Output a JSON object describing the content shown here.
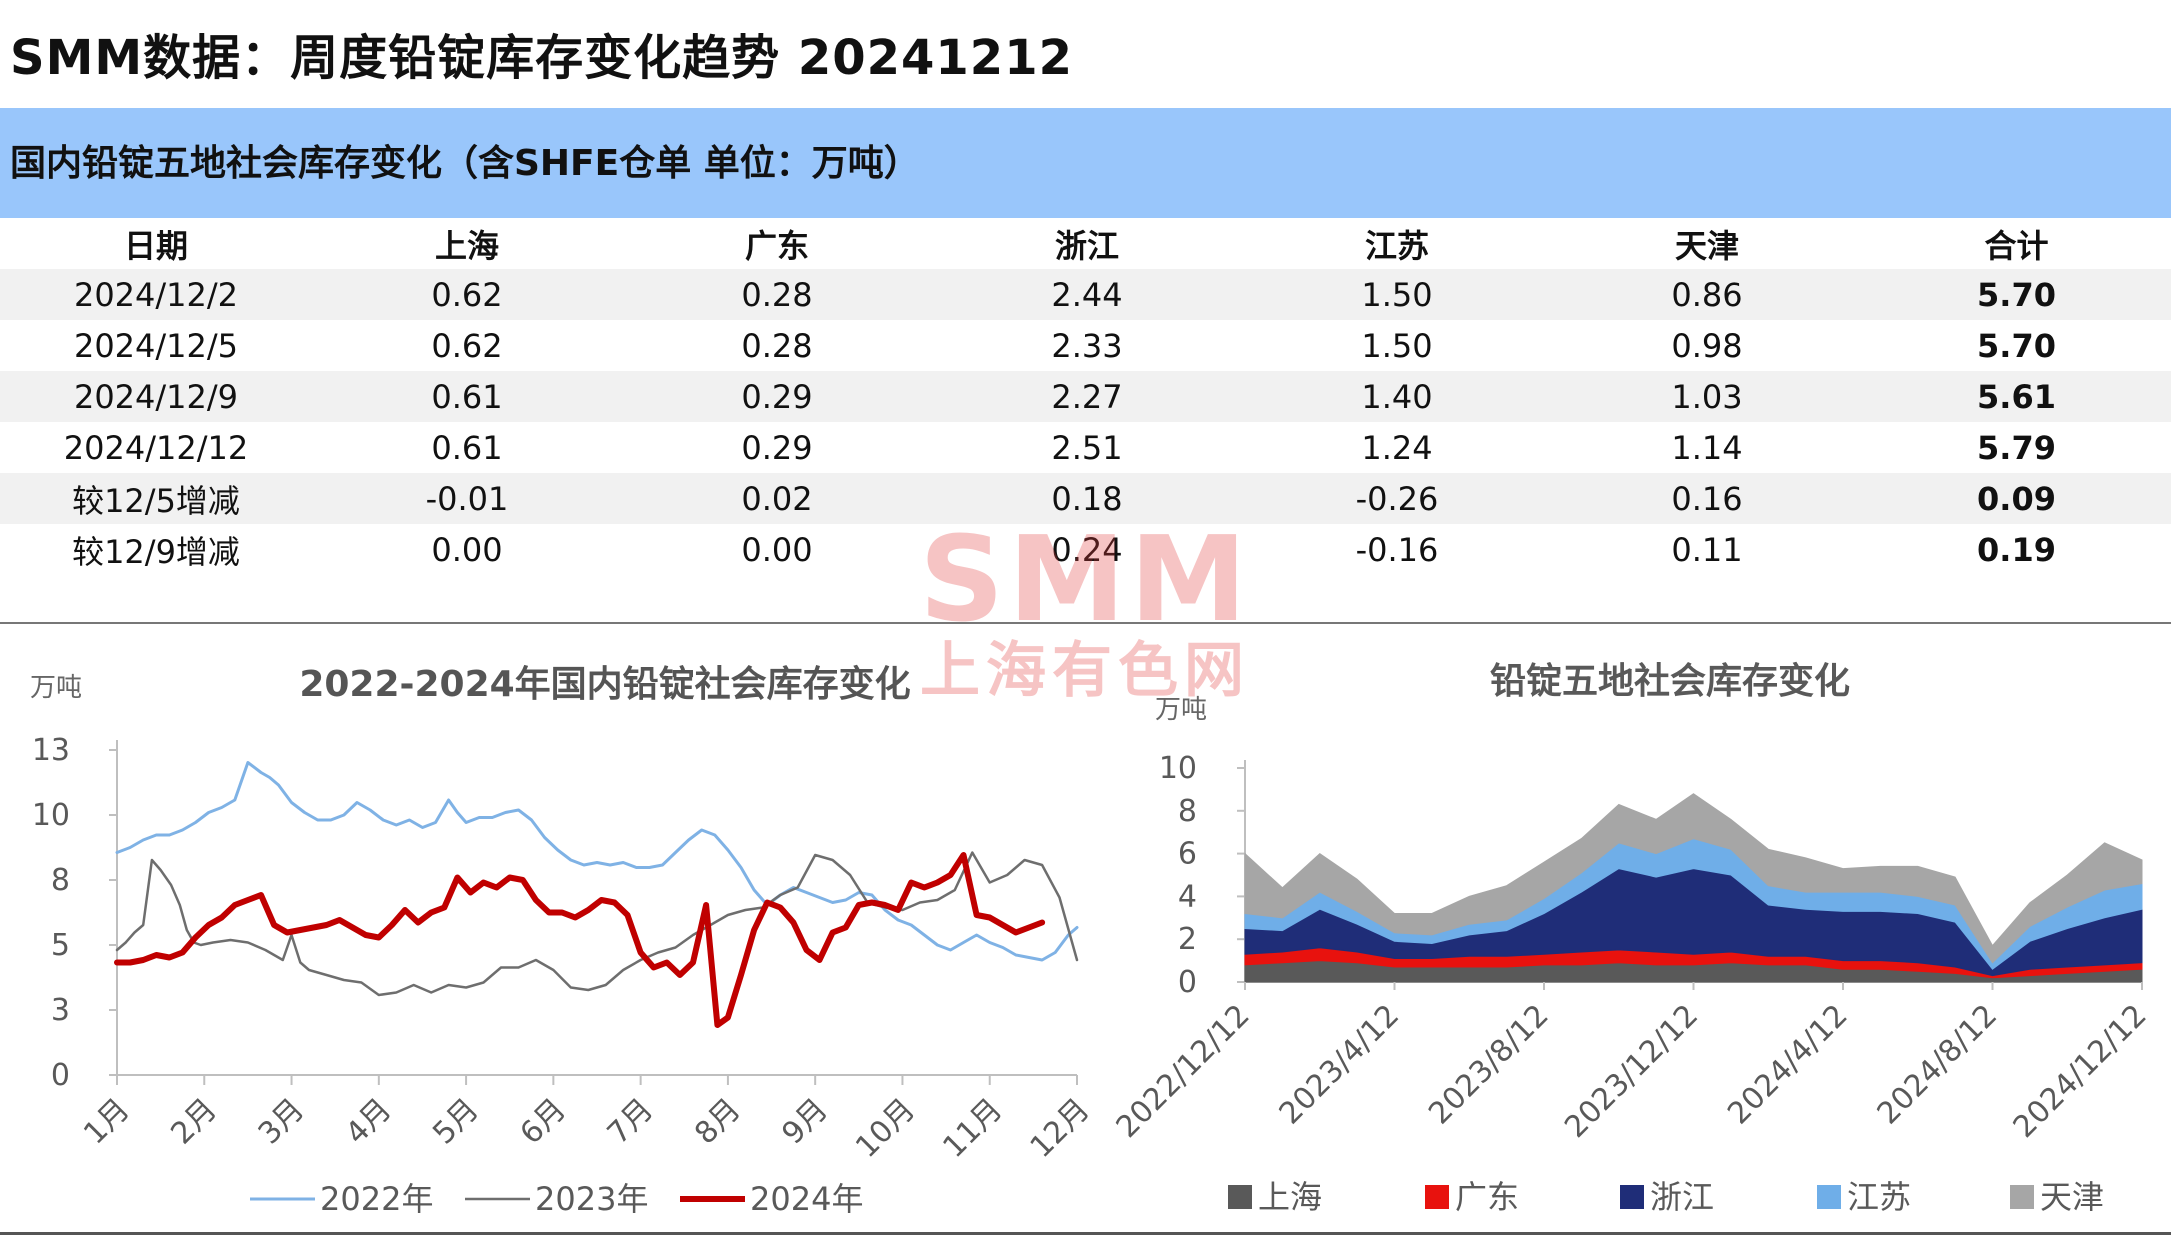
{
  "header": {
    "title": "SMM数据：周度铅锭库存变化趋势 20241212",
    "table_title": "国内铅锭五地社会库存变化（含SHFE仓单 单位：万吨）"
  },
  "table": {
    "columns": [
      "日期",
      "上海",
      "广东",
      "浙江",
      "江苏",
      "天津",
      "合计"
    ],
    "rows": [
      [
        "2024/12/2",
        "0.62",
        "0.28",
        "2.44",
        "1.50",
        "0.86",
        "5.70"
      ],
      [
        "2024/12/5",
        "0.62",
        "0.28",
        "2.33",
        "1.50",
        "0.98",
        "5.70"
      ],
      [
        "2024/12/9",
        "0.61",
        "0.29",
        "2.27",
        "1.40",
        "1.03",
        "5.61"
      ],
      [
        "2024/12/12",
        "0.61",
        "0.29",
        "2.51",
        "1.24",
        "1.14",
        "5.79"
      ],
      [
        "较12/5增减",
        "-0.01",
        "0.02",
        "0.18",
        "-0.26",
        "0.16",
        "0.09"
      ],
      [
        "较12/9增减",
        "0.00",
        "0.00",
        "0.24",
        "-0.16",
        "0.11",
        "0.19"
      ]
    ]
  },
  "watermark": {
    "en": "SMM",
    "cn": "上海有色网"
  },
  "chart_data": [
    {
      "type": "line",
      "title": "2022-2024年国内铅锭社会库存变化",
      "ylabel": "万吨",
      "ylim": [
        0,
        13
      ],
      "yticks": [
        "0",
        "3",
        "5",
        "8",
        "10",
        "13"
      ],
      "ytick_values": [
        0,
        2.6,
        5.2,
        7.8,
        10.4,
        13
      ],
      "xlim": [
        1,
        12
      ],
      "xticks": [
        "1月",
        "2月",
        "3月",
        "4月",
        "5月",
        "6月",
        "7月",
        "8月",
        "9月",
        "10月",
        "11月",
        "12月"
      ],
      "legend_position": "bottom",
      "colors": {
        "2022年": "#7fb2e5",
        "2023年": "#6e6e6e",
        "2024年": "#c00000"
      },
      "series": [
        {
          "name": "2022年",
          "color": "#7fb2e5",
          "width": 3,
          "x": [
            1.0,
            1.15,
            1.3,
            1.45,
            1.6,
            1.75,
            1.9,
            2.05,
            2.2,
            2.35,
            2.5,
            2.65,
            2.75,
            2.85,
            3.0,
            3.15,
            3.3,
            3.45,
            3.6,
            3.75,
            3.9,
            4.05,
            4.2,
            4.35,
            4.5,
            4.65,
            4.8,
            4.9,
            5.0,
            5.15,
            5.3,
            5.45,
            5.6,
            5.75,
            5.9,
            6.05,
            6.2,
            6.35,
            6.5,
            6.65,
            6.8,
            6.95,
            7.1,
            7.25,
            7.4,
            7.55,
            7.7,
            7.85,
            8.0,
            8.15,
            8.3,
            8.45,
            8.6,
            8.75,
            8.9,
            9.05,
            9.2,
            9.35,
            9.5,
            9.65,
            9.8,
            9.95,
            10.1,
            10.25,
            10.4,
            10.55,
            10.7,
            10.85,
            11.0,
            11.15,
            11.3,
            11.45,
            11.6,
            11.75,
            11.9,
            12.0
          ],
          "y": [
            8.9,
            9.1,
            9.4,
            9.6,
            9.6,
            9.8,
            10.1,
            10.5,
            10.7,
            11.0,
            12.5,
            12.1,
            11.9,
            11.6,
            10.9,
            10.5,
            10.2,
            10.2,
            10.4,
            10.9,
            10.6,
            10.2,
            10.0,
            10.2,
            9.9,
            10.1,
            11.0,
            10.5,
            10.1,
            10.3,
            10.3,
            10.5,
            10.6,
            10.2,
            9.5,
            9.0,
            8.6,
            8.4,
            8.5,
            8.4,
            8.5,
            8.3,
            8.3,
            8.4,
            8.9,
            9.4,
            9.8,
            9.6,
            9.0,
            8.3,
            7.4,
            6.8,
            7.2,
            7.5,
            7.3,
            7.1,
            6.9,
            7.0,
            7.3,
            7.2,
            6.6,
            6.2,
            6.0,
            5.6,
            5.2,
            5.0,
            5.3,
            5.6,
            5.3,
            5.1,
            4.8,
            4.7,
            4.6,
            4.9,
            5.6,
            5.9
          ]
        },
        {
          "name": "2023年",
          "color": "#6e6e6e",
          "width": 2.5,
          "x": [
            1.0,
            1.1,
            1.2,
            1.3,
            1.4,
            1.5,
            1.62,
            1.72,
            1.8,
            1.88,
            1.96,
            2.1,
            2.3,
            2.5,
            2.7,
            2.9,
            3.0,
            3.1,
            3.2,
            3.4,
            3.6,
            3.8,
            4.0,
            4.2,
            4.4,
            4.6,
            4.8,
            5.0,
            5.2,
            5.4,
            5.6,
            5.8,
            6.0,
            6.2,
            6.4,
            6.6,
            6.8,
            7.0,
            7.2,
            7.4,
            7.6,
            7.8,
            8.0,
            8.2,
            8.4,
            8.6,
            8.8,
            9.0,
            9.2,
            9.4,
            9.6,
            9.8,
            10.0,
            10.2,
            10.4,
            10.6,
            10.8,
            11.0,
            11.2,
            11.4,
            11.6,
            11.8,
            12.0
          ],
          "y": [
            5.0,
            5.3,
            5.7,
            6.0,
            8.6,
            8.2,
            7.6,
            6.8,
            5.8,
            5.3,
            5.2,
            5.3,
            5.4,
            5.3,
            5.0,
            4.6,
            5.6,
            4.5,
            4.2,
            4.0,
            3.8,
            3.7,
            3.2,
            3.3,
            3.6,
            3.3,
            3.6,
            3.5,
            3.7,
            4.3,
            4.3,
            4.6,
            4.2,
            3.5,
            3.4,
            3.6,
            4.2,
            4.6,
            4.9,
            5.1,
            5.6,
            6.0,
            6.4,
            6.6,
            6.7,
            7.2,
            7.5,
            8.8,
            8.6,
            8.0,
            6.9,
            6.7,
            6.6,
            6.9,
            7.0,
            7.4,
            8.9,
            7.7,
            8.0,
            8.6,
            8.4,
            7.1,
            4.6
          ]
        },
        {
          "name": "2024年",
          "color": "#c00000",
          "width": 6,
          "x": [
            1.0,
            1.15,
            1.3,
            1.45,
            1.6,
            1.75,
            1.9,
            2.05,
            2.2,
            2.35,
            2.5,
            2.65,
            2.8,
            2.95,
            3.1,
            3.25,
            3.4,
            3.55,
            3.7,
            3.85,
            4.0,
            4.15,
            4.3,
            4.45,
            4.6,
            4.75,
            4.9,
            5.05,
            5.2,
            5.35,
            5.5,
            5.65,
            5.8,
            5.95,
            6.1,
            6.25,
            6.4,
            6.55,
            6.7,
            6.85,
            7.0,
            7.15,
            7.3,
            7.45,
            7.6,
            7.75,
            7.88,
            8.0,
            8.15,
            8.3,
            8.45,
            8.6,
            8.75,
            8.9,
            9.05,
            9.2,
            9.35,
            9.5,
            9.65,
            9.8,
            9.95,
            10.1,
            10.25,
            10.4,
            10.55,
            10.7,
            10.85,
            11.0,
            11.15,
            11.3,
            11.45,
            11.6
          ],
          "y": [
            4.5,
            4.5,
            4.6,
            4.8,
            4.7,
            4.9,
            5.5,
            6.0,
            6.3,
            6.8,
            7.0,
            7.2,
            6.0,
            5.7,
            5.8,
            5.9,
            6.0,
            6.2,
            5.9,
            5.6,
            5.5,
            6.0,
            6.6,
            6.1,
            6.5,
            6.7,
            7.9,
            7.3,
            7.7,
            7.5,
            7.9,
            7.8,
            7.0,
            6.5,
            6.5,
            6.3,
            6.6,
            7.0,
            6.9,
            6.4,
            4.9,
            4.3,
            4.5,
            4.0,
            4.5,
            6.8,
            2.0,
            2.3,
            4.0,
            5.8,
            6.9,
            6.7,
            6.1,
            5.0,
            4.6,
            5.7,
            5.9,
            6.8,
            6.9,
            6.8,
            6.6,
            7.7,
            7.5,
            7.7,
            8.0,
            8.8,
            6.4,
            6.3,
            6.0,
            5.7,
            5.9,
            6.1
          ]
        }
      ]
    },
    {
      "type": "area",
      "title": "铅锭五地社会库存变化",
      "ylabel": "万吨",
      "ylim": [
        0,
        10
      ],
      "yticks": [
        "0",
        "2",
        "4",
        "6",
        "8",
        "10"
      ],
      "xticks": [
        "2022/12/12",
        "2023/4/12",
        "2023/8/12",
        "2023/12/12",
        "2024/4/12",
        "2024/8/12",
        "2024/12/12"
      ],
      "legend_position": "bottom",
      "colors": {
        "上海": "#595959",
        "广东": "#e8120e",
        "浙江": "#1f2d78",
        "江苏": "#6faee8",
        "天津": "#a6a6a6"
      },
      "x": [
        "2022/12/12",
        "2023/1/12",
        "2023/2/12",
        "2023/3/12",
        "2023/4/12",
        "2023/5/12",
        "2023/6/12",
        "2023/7/12",
        "2023/8/12",
        "2023/9/12",
        "2023/10/12",
        "2023/11/12",
        "2023/12/12",
        "2024/1/12",
        "2024/2/12",
        "2024/3/12",
        "2024/4/12",
        "2024/5/12",
        "2024/6/12",
        "2024/7/12",
        "2024/8/12",
        "2024/9/12",
        "2024/10/12",
        "2024/11/12",
        "2024/12/12"
      ],
      "series": [
        {
          "name": "上海",
          "color": "#595959",
          "values": [
            0.8,
            0.9,
            1.0,
            0.9,
            0.7,
            0.7,
            0.7,
            0.7,
            0.8,
            0.8,
            0.9,
            0.8,
            0.8,
            0.9,
            0.8,
            0.8,
            0.6,
            0.6,
            0.5,
            0.4,
            0.2,
            0.3,
            0.4,
            0.5,
            0.6
          ]
        },
        {
          "name": "广东",
          "color": "#e8120e",
          "values": [
            0.5,
            0.5,
            0.6,
            0.5,
            0.4,
            0.4,
            0.5,
            0.5,
            0.5,
            0.6,
            0.6,
            0.6,
            0.5,
            0.5,
            0.4,
            0.4,
            0.4,
            0.4,
            0.4,
            0.3,
            0.1,
            0.3,
            0.3,
            0.3,
            0.3
          ]
        },
        {
          "name": "浙江",
          "color": "#1f2d78",
          "values": [
            1.2,
            1.0,
            1.8,
            1.3,
            0.8,
            0.7,
            1.0,
            1.2,
            1.9,
            2.8,
            3.8,
            3.5,
            4.0,
            3.6,
            2.4,
            2.2,
            2.3,
            2.3,
            2.3,
            2.1,
            0.3,
            1.3,
            1.8,
            2.2,
            2.5
          ]
        },
        {
          "name": "江苏",
          "color": "#6faee8",
          "values": [
            0.7,
            0.6,
            0.8,
            0.6,
            0.4,
            0.4,
            0.5,
            0.5,
            0.7,
            0.9,
            1.2,
            1.1,
            1.4,
            1.2,
            0.9,
            0.8,
            0.9,
            0.9,
            0.8,
            0.8,
            0.3,
            0.7,
            1.0,
            1.3,
            1.2
          ]
        },
        {
          "name": "天津",
          "color": "#a6a6a6",
          "values": [
            2.8,
            1.4,
            1.8,
            1.5,
            0.9,
            1.0,
            1.3,
            1.6,
            1.7,
            1.6,
            1.8,
            1.6,
            2.1,
            1.4,
            1.7,
            1.6,
            1.1,
            1.2,
            1.4,
            1.3,
            0.8,
            1.1,
            1.5,
            2.2,
            1.1
          ]
        }
      ]
    }
  ]
}
